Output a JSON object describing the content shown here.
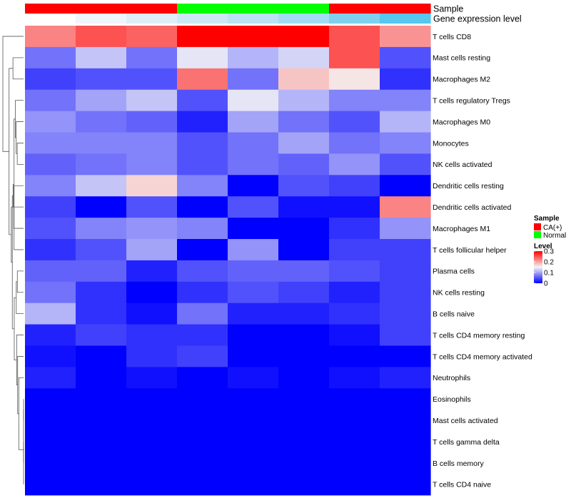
{
  "chart_data": {
    "type": "heatmap",
    "title": "",
    "rows": [
      "T cells CD8",
      "Mast cells resting",
      "Macrophages M2",
      "T cells regulatory  Tregs",
      "Macrophages M0",
      "Monocytes",
      "NK cells activated",
      "Dendritic cells resting",
      "Dendritic cells activated",
      "Macrophages M1",
      "T cells follicular helper",
      "Plasma cells",
      "NK cells resting",
      "B cells naive",
      "T cells CD4 memory resting",
      "T cells CD4 memory activated",
      "Neutrophils",
      "Eosinophils",
      "Mast cells activated",
      "T cells gamma delta",
      "B cells memory",
      "T cells CD4 naive"
    ],
    "n_columns": 8,
    "values": [
      [
        0.22,
        0.25,
        0.24,
        0.3,
        0.3,
        0.3,
        0.25,
        0.21
      ],
      [
        0.07,
        0.12,
        0.07,
        0.14,
        0.11,
        0.13,
        0.25,
        0.05
      ],
      [
        0.04,
        0.05,
        0.05,
        0.23,
        0.07,
        0.18,
        0.16,
        0.03
      ],
      [
        0.07,
        0.1,
        0.12,
        0.05,
        0.14,
        0.11,
        0.08,
        0.08
      ],
      [
        0.09,
        0.07,
        0.06,
        0.02,
        0.1,
        0.07,
        0.05,
        0.11
      ],
      [
        0.08,
        0.08,
        0.08,
        0.05,
        0.07,
        0.1,
        0.07,
        0.08
      ],
      [
        0.06,
        0.07,
        0.08,
        0.05,
        0.07,
        0.06,
        0.09,
        0.05
      ],
      [
        0.08,
        0.12,
        0.17,
        0.08,
        0.0,
        0.05,
        0.04,
        0.0
      ],
      [
        0.04,
        0.0,
        0.05,
        0.0,
        0.05,
        0.01,
        0.01,
        0.22
      ],
      [
        0.05,
        0.08,
        0.09,
        0.08,
        0.0,
        0.0,
        0.03,
        0.09
      ],
      [
        0.03,
        0.05,
        0.1,
        0.0,
        0.09,
        0.0,
        0.04,
        0.04
      ],
      [
        0.06,
        0.06,
        0.02,
        0.05,
        0.06,
        0.06,
        0.05,
        0.04
      ],
      [
        0.07,
        0.03,
        0.0,
        0.03,
        0.05,
        0.04,
        0.02,
        0.04
      ],
      [
        0.11,
        0.03,
        0.01,
        0.07,
        0.02,
        0.02,
        0.03,
        0.04
      ],
      [
        0.02,
        0.04,
        0.03,
        0.03,
        0.0,
        0.0,
        0.01,
        0.04
      ],
      [
        0.01,
        0.0,
        0.03,
        0.04,
        0.0,
        0.0,
        0.0,
        0.0
      ],
      [
        0.02,
        0.0,
        0.01,
        0.0,
        0.01,
        0.0,
        0.01,
        0.02
      ],
      [
        0.0,
        0.0,
        0.0,
        0.0,
        0.0,
        0.0,
        0.0,
        0.0
      ],
      [
        0.0,
        0.0,
        0.0,
        0.0,
        0.0,
        0.0,
        0.0,
        0.0
      ],
      [
        0.0,
        0.0,
        0.0,
        0.0,
        0.0,
        0.0,
        0.0,
        0.0
      ],
      [
        0.0,
        0.0,
        0.0,
        0.0,
        0.0,
        0.0,
        0.0,
        0.0
      ],
      [
        0.0,
        0.0,
        0.0,
        0.0,
        0.0,
        0.0,
        0.0,
        0.0
      ]
    ],
    "color_scale": {
      "min": 0,
      "mid": 0.15,
      "max": 0.3,
      "low_color": "#0000ff",
      "mid_color": "#f5f5f5",
      "high_color": "#ff0000"
    },
    "column_annotations": {
      "sample": {
        "label": "Sample",
        "values": [
          "CA(+)",
          "CA(+)",
          "CA(+)",
          "Normal",
          "Normal",
          "Normal",
          "CA(+)",
          "CA(+)"
        ],
        "colors": {
          "CA(+)": "#ff0000",
          "Normal": "#00ff00"
        }
      },
      "gene_expression": {
        "label": "Gene expression level",
        "colors": [
          "#ffffff",
          "#f0f4fb",
          "#deeef8",
          "#cce8f5",
          "#bae2f3",
          "#a3dbf2",
          "#7fd0ef",
          "#56c7ee"
        ]
      }
    },
    "legend": {
      "sample": {
        "title": "Sample",
        "items": [
          "CA(+)",
          "Normal"
        ]
      },
      "level": {
        "title": "Level",
        "ticks": [
          "0.3",
          "0.2",
          "0.1",
          "0"
        ],
        "tick_values": [
          0.3,
          0.2,
          0.1,
          0
        ]
      }
    },
    "row_dendrogram": true,
    "column_dendrogram": false
  }
}
